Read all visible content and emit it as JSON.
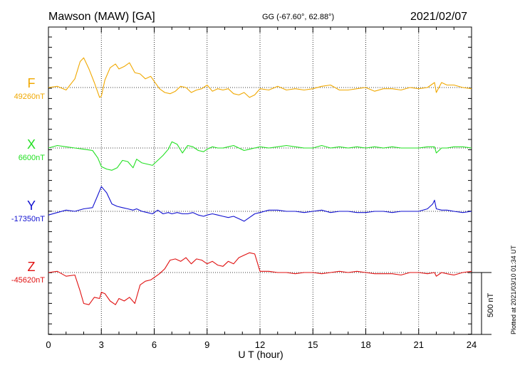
{
  "header": {
    "station": "Mawson (MAW)  [GA]",
    "coords": "GG (-67.60°,  62.88°)",
    "date": "2021/02/07"
  },
  "footer": {
    "plotted": "Plotted at 2021/03/10 01:34  UT"
  },
  "scale": {
    "label": "500 nT",
    "value_nT": 500
  },
  "chart_data": {
    "type": "line",
    "title": "Mawson (MAW)  [GA]",
    "xlabel": "U T (hour)",
    "ylabel": "",
    "xlim": [
      0,
      24
    ],
    "x_ticks": [
      0,
      3,
      6,
      9,
      12,
      15,
      18,
      21,
      24
    ],
    "x_tick_labels": [
      "0",
      "3",
      "6",
      "9",
      "12",
      "15",
      "18",
      "21",
      "24"
    ],
    "grid": true,
    "units": "nT",
    "series": [
      {
        "name": "F",
        "baseline_label": "49260nT",
        "baseline_nT": 49260,
        "color": "#f0a800",
        "x": [
          0,
          0.5,
          1,
          1.5,
          1.8,
          2,
          2.3,
          2.6,
          2.9,
          3,
          3.2,
          3.5,
          3.8,
          4,
          4.3,
          4.6,
          4.9,
          5.2,
          5.5,
          5.8,
          6,
          6.3,
          6.6,
          6.9,
          7.2,
          7.5,
          7.8,
          8.1,
          8.4,
          8.7,
          9,
          9.3,
          9.6,
          9.9,
          10.2,
          10.5,
          10.8,
          11.1,
          11.4,
          11.7,
          12,
          12.5,
          13,
          13.5,
          14,
          14.5,
          15,
          15.5,
          16,
          16.5,
          17,
          17.5,
          18,
          18.5,
          19,
          19.5,
          20,
          20.5,
          21,
          21.5,
          21.9,
          22,
          22.3,
          22.6,
          23,
          23.5,
          24
        ],
        "y": [
          0,
          10,
          -20,
          70,
          210,
          240,
          150,
          40,
          -80,
          -70,
          60,
          160,
          190,
          150,
          170,
          200,
          120,
          110,
          70,
          90,
          50,
          -10,
          -40,
          -50,
          -30,
          10,
          0,
          -40,
          -20,
          -10,
          20,
          -30,
          -10,
          -20,
          -10,
          -50,
          -60,
          -40,
          -80,
          -60,
          -10,
          -20,
          10,
          -20,
          -10,
          -20,
          -10,
          10,
          20,
          -20,
          -20,
          -10,
          0,
          -30,
          -10,
          -10,
          -20,
          0,
          -10,
          0,
          40,
          -40,
          40,
          20,
          20,
          0,
          -10
        ]
      },
      {
        "name": "X",
        "baseline_label": "6600nT",
        "baseline_nT": 6600,
        "color": "#22e022",
        "x": [
          0,
          0.5,
          1,
          1.5,
          2,
          2.5,
          2.8,
          3,
          3.3,
          3.6,
          3.9,
          4.2,
          4.5,
          4.8,
          5,
          5.3,
          5.6,
          5.9,
          6.2,
          6.5,
          6.8,
          7,
          7.3,
          7.6,
          7.9,
          8.2,
          8.5,
          8.8,
          9,
          9.3,
          9.6,
          9.9,
          10.2,
          10.5,
          10.8,
          11.1,
          11.4,
          11.7,
          12,
          12.5,
          13,
          13.5,
          14,
          14.5,
          15,
          15.5,
          16,
          16.5,
          17,
          17.5,
          18,
          18.5,
          19,
          19.5,
          20,
          20.5,
          21,
          21.5,
          21.9,
          22,
          22.3,
          22.6,
          23,
          23.5,
          24
        ],
        "y": [
          0,
          20,
          10,
          0,
          -10,
          -20,
          -80,
          -150,
          -170,
          -180,
          -160,
          -100,
          -110,
          -160,
          -90,
          -120,
          -130,
          -140,
          -100,
          -60,
          -10,
          50,
          30,
          -40,
          20,
          10,
          -20,
          -30,
          -10,
          10,
          0,
          0,
          10,
          20,
          0,
          -20,
          -10,
          0,
          10,
          0,
          10,
          20,
          10,
          0,
          0,
          20,
          0,
          10,
          0,
          10,
          0,
          10,
          0,
          10,
          0,
          0,
          0,
          10,
          10,
          -40,
          0,
          0,
          10,
          10,
          0
        ]
      },
      {
        "name": "Y",
        "baseline_label": "-17350nT",
        "baseline_nT": -17350,
        "color": "#1010d0",
        "x": [
          0,
          0.5,
          1,
          1.5,
          2,
          2.5,
          2.8,
          3,
          3.3,
          3.6,
          3.9,
          4.2,
          4.5,
          4.8,
          5,
          5.3,
          5.6,
          5.9,
          6.2,
          6.5,
          6.8,
          7,
          7.3,
          7.6,
          7.9,
          8.2,
          8.5,
          8.8,
          9,
          9.3,
          9.6,
          9.9,
          10.2,
          10.5,
          10.8,
          11.1,
          11.4,
          11.7,
          12,
          12.5,
          13,
          13.5,
          14,
          14.5,
          15,
          15.5,
          16,
          16.5,
          17,
          17.5,
          18,
          18.5,
          19,
          19.5,
          20,
          20.5,
          21,
          21.5,
          21.8,
          21.9,
          22,
          22.3,
          22.6,
          23,
          23.5,
          24
        ],
        "y": [
          -30,
          -10,
          10,
          0,
          20,
          30,
          130,
          200,
          150,
          60,
          40,
          30,
          20,
          10,
          20,
          0,
          -10,
          -20,
          10,
          -20,
          -10,
          -20,
          -10,
          -20,
          -20,
          -10,
          -30,
          -40,
          -30,
          -20,
          -30,
          -40,
          -50,
          -40,
          -60,
          -80,
          -50,
          -20,
          -10,
          10,
          10,
          0,
          0,
          -10,
          0,
          10,
          -10,
          0,
          0,
          -10,
          -10,
          0,
          0,
          -10,
          0,
          0,
          0,
          20,
          60,
          90,
          20,
          10,
          10,
          0,
          -10,
          0
        ]
      },
      {
        "name": "Z",
        "baseline_label": "-45620nT",
        "baseline_nT": -45620,
        "color": "#e01010",
        "x": [
          0,
          0.5,
          1,
          1.5,
          1.8,
          2,
          2.3,
          2.6,
          2.9,
          3,
          3.2,
          3.5,
          3.8,
          4,
          4.3,
          4.6,
          4.9,
          5.2,
          5.5,
          5.8,
          6,
          6.3,
          6.6,
          6.9,
          7.2,
          7.5,
          7.8,
          8.1,
          8.4,
          8.7,
          9,
          9.3,
          9.6,
          9.9,
          10.2,
          10.5,
          10.8,
          11.1,
          11.4,
          11.7,
          12,
          12.5,
          13,
          13.5,
          14,
          14.5,
          15,
          15.5,
          16,
          16.5,
          17,
          17.5,
          18,
          18.5,
          19,
          19.5,
          20,
          20.5,
          21,
          21.5,
          21.9,
          22,
          22.3,
          22.6,
          23,
          23.5,
          24
        ],
        "y": [
          0,
          10,
          -30,
          -20,
          -150,
          -250,
          -260,
          -200,
          -210,
          -160,
          -170,
          -230,
          -260,
          -210,
          -230,
          -200,
          -250,
          -100,
          -70,
          -60,
          -40,
          -10,
          30,
          100,
          110,
          90,
          120,
          70,
          110,
          100,
          70,
          90,
          60,
          50,
          90,
          70,
          120,
          140,
          160,
          150,
          10,
          10,
          0,
          0,
          -10,
          0,
          0,
          -10,
          0,
          10,
          0,
          10,
          0,
          -10,
          -10,
          -10,
          -20,
          0,
          0,
          -10,
          0,
          -30,
          0,
          -10,
          -20,
          0,
          10
        ]
      }
    ]
  }
}
